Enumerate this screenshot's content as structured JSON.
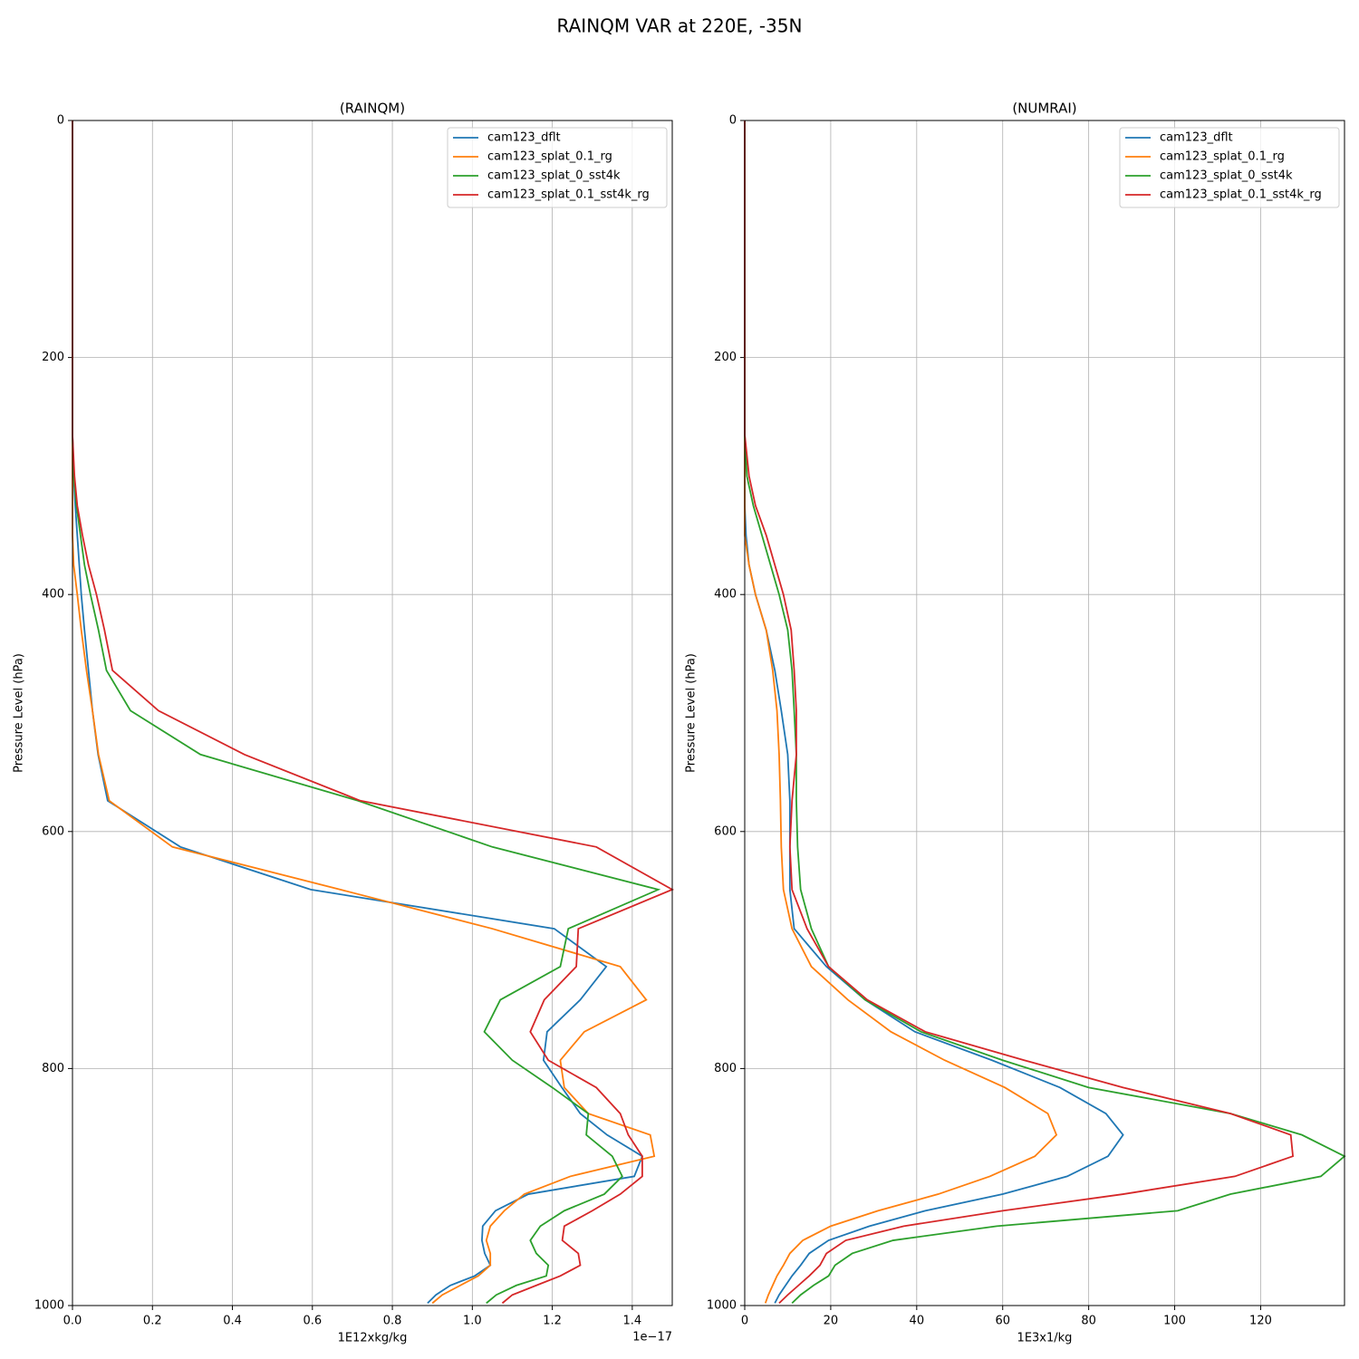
{
  "title": "RAINQM VAR at 220E, -35N",
  "chart_data": [
    {
      "type": "line",
      "title": "(RAINQM)",
      "xlabel": "1E12xkg/kg",
      "ylabel": "Pressure Level (hPa)",
      "offset_text": "1e−17",
      "grid": true,
      "legend": "upper right",
      "xlim": [
        0,
        1.5
      ],
      "ylim": [
        1000,
        0
      ],
      "xticks": [
        {
          "value": 0,
          "label": "0.0"
        },
        0.2,
        0.4,
        0.6,
        0.8,
        {
          "value": 1,
          "label": "1.0"
        },
        1.2,
        1.4
      ],
      "yticks": [
        0,
        200,
        400,
        600,
        800,
        1000
      ],
      "y": [
        0,
        100,
        200,
        265,
        300,
        325,
        350,
        375,
        400,
        430,
        464,
        498,
        535,
        574,
        613,
        649,
        682,
        714,
        742,
        769,
        793,
        816,
        838,
        856,
        874,
        891,
        906,
        920,
        933,
        945,
        956,
        966,
        975,
        983,
        991,
        998
      ],
      "series": [
        {
          "name": "cam123_dflt",
          "color": "#1f77b4",
          "values": [
            0,
            0,
            0,
            0,
            0.003,
            0.007,
            0.012,
            0.017,
            0.022,
            0.03,
            0.04,
            0.05,
            0.064,
            0.088,
            0.27,
            0.596,
            1.205,
            1.335,
            1.27,
            1.187,
            1.178,
            1.224,
            1.27,
            1.337,
            1.425,
            1.405,
            1.14,
            1.058,
            1.026,
            1.024,
            1.031,
            1.045,
            1.006,
            0.945,
            0.909,
            0.888
          ]
        },
        {
          "name": "cam123_splat_0.1_rg",
          "color": "#ff7f0e",
          "values": [
            0,
            0,
            0,
            0,
            0,
            0,
            0,
            0.003,
            0.012,
            0.022,
            0.035,
            0.05,
            0.065,
            0.092,
            0.25,
            0.67,
            1.05,
            1.37,
            1.435,
            1.28,
            1.22,
            1.23,
            1.29,
            1.445,
            1.455,
            1.245,
            1.13,
            1.08,
            1.045,
            1.035,
            1.045,
            1.045,
            1.015,
            0.97,
            0.925,
            0.9
          ]
        },
        {
          "name": "cam123_splat_0_sst4k",
          "color": "#2ca02c",
          "values": [
            0,
            0,
            0,
            0,
            0.003,
            0.01,
            0.02,
            0.03,
            0.045,
            0.065,
            0.085,
            0.145,
            0.32,
            0.714,
            1.05,
            1.465,
            1.24,
            1.22,
            1.07,
            1.03,
            1.1,
            1.2,
            1.29,
            1.285,
            1.35,
            1.375,
            1.33,
            1.23,
            1.17,
            1.145,
            1.16,
            1.19,
            1.185,
            1.11,
            1.06,
            1.035
          ]
        },
        {
          "name": "cam123_splat_0.1_sst4k_rg",
          "color": "#d62728",
          "values": [
            0,
            0,
            0,
            0,
            0.005,
            0.012,
            0.025,
            0.04,
            0.06,
            0.08,
            0.1,
            0.215,
            0.43,
            0.72,
            1.31,
            1.5,
            1.265,
            1.26,
            1.18,
            1.145,
            1.19,
            1.31,
            1.37,
            1.39,
            1.425,
            1.425,
            1.37,
            1.3,
            1.23,
            1.225,
            1.265,
            1.27,
            1.22,
            1.16,
            1.1,
            1.075
          ]
        }
      ]
    },
    {
      "type": "line",
      "title": "(NUMRAI)",
      "xlabel": "1E3x1/kg",
      "ylabel": "Pressure Level (hPa)",
      "grid": true,
      "legend": "upper right",
      "xlim": [
        0,
        139.5
      ],
      "ylim": [
        1000,
        0
      ],
      "xticks": [
        0,
        20,
        40,
        60,
        80,
        100,
        120
      ],
      "yticks": [
        0,
        200,
        400,
        600,
        800,
        1000
      ],
      "y": [
        0,
        100,
        200,
        265,
        300,
        325,
        350,
        375,
        400,
        430,
        464,
        498,
        535,
        574,
        613,
        649,
        682,
        714,
        742,
        769,
        793,
        816,
        838,
        856,
        874,
        891,
        906,
        920,
        933,
        945,
        956,
        966,
        975,
        983,
        991,
        998
      ],
      "series": [
        {
          "name": "cam123_dflt",
          "color": "#1f77b4",
          "values": [
            0,
            0,
            0,
            0,
            0,
            0,
            0.3,
            1,
            2.5,
            5,
            7,
            8.5,
            10,
            10.5,
            10.5,
            10.5,
            11.5,
            19,
            28,
            39.6,
            57.5,
            73.3,
            84,
            88,
            84.5,
            75,
            60,
            42,
            29,
            19.5,
            15,
            13,
            11,
            9.5,
            8,
            7
          ]
        },
        {
          "name": "cam123_splat_0.1_rg",
          "color": "#ff7f0e",
          "values": [
            0,
            0,
            0,
            0,
            0,
            0,
            0,
            1,
            2.5,
            5,
            6.5,
            7.5,
            8,
            8.3,
            8.5,
            9,
            11,
            15.5,
            24,
            34,
            46.5,
            60.5,
            70.5,
            72.5,
            67.5,
            57,
            45,
            31,
            20,
            13.5,
            10.5,
            9,
            7.5,
            6.5,
            5.5,
            4.8
          ]
        },
        {
          "name": "cam123_splat_0_sst4k",
          "color": "#2ca02c",
          "values": [
            0,
            0,
            0,
            0,
            0.5,
            2,
            4,
            6,
            8,
            10,
            11,
            11.5,
            12,
            12,
            12.3,
            13,
            15.5,
            19.5,
            28,
            41,
            60,
            80,
            113,
            129.6,
            139.5,
            134,
            113,
            100.7,
            58.6,
            34.5,
            25,
            21,
            19.5,
            16,
            13,
            11
          ]
        },
        {
          "name": "cam123_splat_0.1_sst4k_rg",
          "color": "#d62728",
          "values": [
            0,
            0,
            0,
            0,
            1,
            2.5,
            5,
            7,
            9,
            10.8,
            11.5,
            12,
            12,
            11,
            10.5,
            11,
            14.5,
            19.5,
            28.5,
            42,
            65,
            88,
            113,
            127,
            127.5,
            114,
            88,
            60,
            37,
            23.5,
            19,
            17.5,
            15,
            12.5,
            10,
            8
          ]
        }
      ]
    }
  ]
}
